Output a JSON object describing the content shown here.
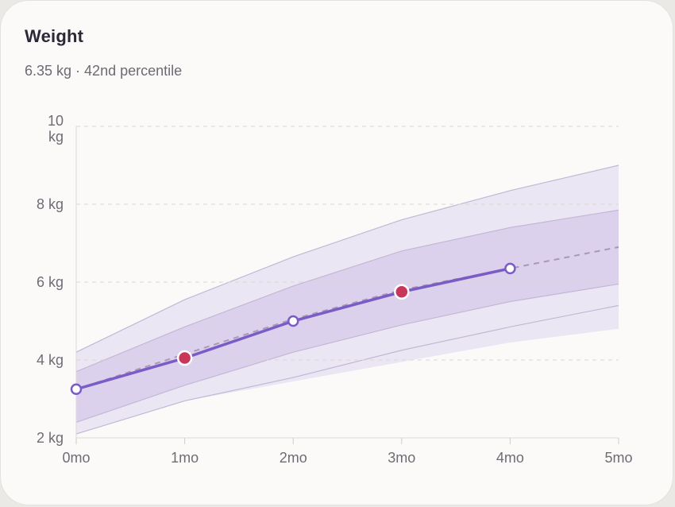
{
  "card": {
    "title": "Weight",
    "subtitle": "6.35 kg · 42nd percentile"
  },
  "colors": {
    "band_outer": "#ebe6f3",
    "band_inner": "#dcd1ec",
    "percentile_line": "#c4b7d4",
    "median_line": "#a69bb3",
    "measure_line": "#7b5cc6",
    "highlight_point": "#c8375a",
    "grid": "#d9d6d2"
  },
  "chart_data": {
    "type": "line",
    "x_ticks": [
      "0mo",
      "1mo",
      "2mo",
      "3mo",
      "4mo",
      "5mo"
    ],
    "y_ticks": [
      "2 kg",
      "4 kg",
      "6 kg",
      "8 kg",
      "10\nkg"
    ],
    "xlim": [
      0,
      5
    ],
    "ylim": [
      2,
      10
    ],
    "grid": "horizontal dashed",
    "percentile_bands": {
      "x": [
        0,
        1,
        2,
        3,
        4,
        5
      ],
      "outer_upper": [
        4.2,
        5.55,
        6.65,
        7.6,
        8.35,
        9.0
      ],
      "p_high": [
        3.7,
        4.85,
        5.9,
        6.8,
        7.4,
        7.85
      ],
      "p_low": [
        2.4,
        3.35,
        4.2,
        4.9,
        5.5,
        5.95
      ],
      "outer_inner": [
        2.1,
        2.95,
        3.55,
        4.25,
        4.85,
        5.4
      ],
      "outer_lower": [
        2.1,
        2.95,
        3.45,
        3.95,
        4.45,
        4.8
      ]
    },
    "series": [
      {
        "name": "",
        "style": "dashed",
        "x": [
          0,
          1,
          2,
          3,
          4,
          5
        ],
        "values": [
          3.25,
          4.15,
          5.05,
          5.8,
          6.35,
          6.9
        ]
      },
      {
        "name": "",
        "style": "solid",
        "x": [
          0,
          1,
          2,
          3,
          4
        ],
        "values": [
          3.25,
          4.05,
          5.0,
          5.75,
          6.35
        ],
        "highlighted": [
          false,
          true,
          false,
          true,
          false
        ]
      }
    ]
  }
}
